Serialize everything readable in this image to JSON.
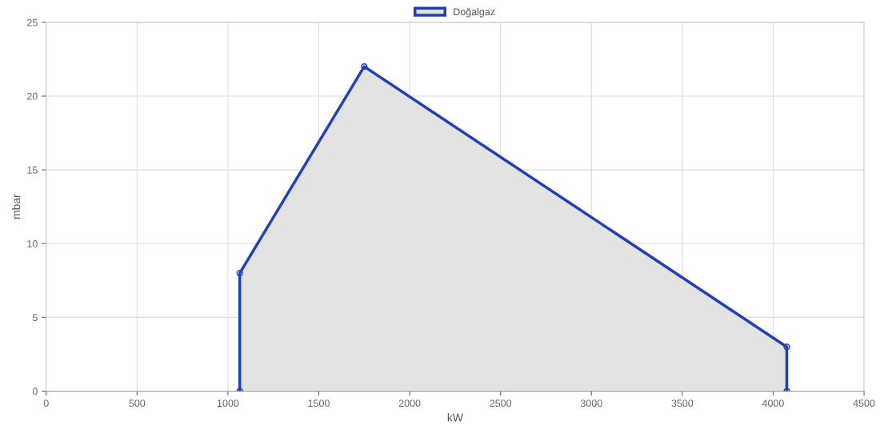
{
  "chart_data": {
    "type": "area",
    "xlabel": "kW",
    "ylabel": "mbar",
    "series": [
      {
        "name": "Doğalgaz",
        "color": "#1f3fbf",
        "x": [
          1065,
          1065,
          1750,
          4075,
          4075
        ],
        "values": [
          0,
          8,
          22,
          3,
          0
        ]
      }
    ],
    "xlim": [
      0,
      4500
    ],
    "xticks": [
      0,
      500,
      1000,
      1500,
      2000,
      2500,
      3000,
      3500,
      4000,
      4500
    ],
    "ylim": [
      0,
      25
    ],
    "yticks": [
      0,
      5,
      10,
      15,
      20,
      25
    ],
    "grid": true,
    "legend": "top",
    "marker": "circle",
    "line_style": "solid"
  }
}
